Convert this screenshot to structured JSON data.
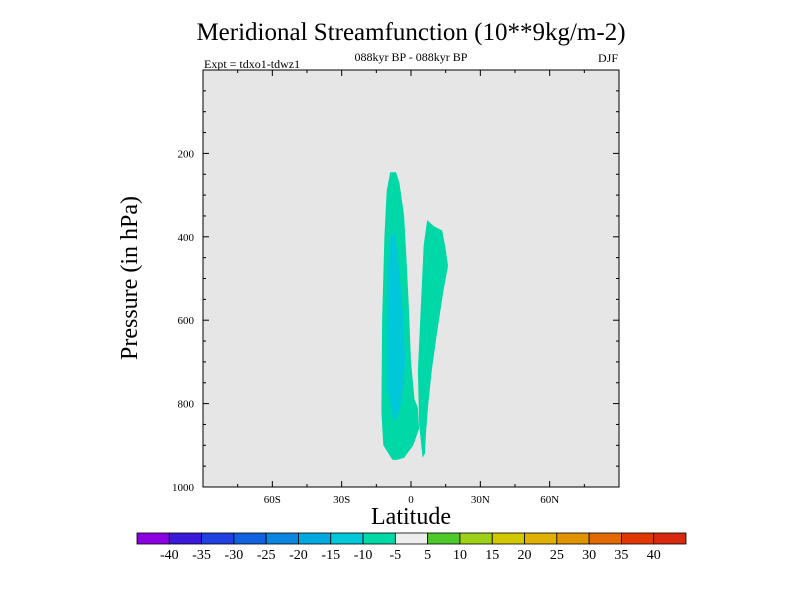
{
  "chart_data": {
    "type": "heatmap",
    "title": "Meridional Streamfunction (10**9kg/m-2)",
    "subtitle": "088kyr BP - 088kyr BP",
    "experiment": "Expt = tdxo1-tdwz1",
    "season": "DJF",
    "xlabel": "Latitude",
    "ylabel": "Pressure (in hPa)",
    "xlim": [
      -90,
      90
    ],
    "ylim": [
      1000,
      0
    ],
    "x_ticks": [
      {
        "value": -60,
        "label": "60S"
      },
      {
        "value": -30,
        "label": "30S"
      },
      {
        "value": 0,
        "label": "0"
      },
      {
        "value": 30,
        "label": "30N"
      },
      {
        "value": 60,
        "label": "60N"
      }
    ],
    "y_ticks": [
      {
        "value": 200,
        "label": "200"
      },
      {
        "value": 400,
        "label": "400"
      },
      {
        "value": 600,
        "label": "600"
      },
      {
        "value": 800,
        "label": "800"
      },
      {
        "value": 1000,
        "label": "1000"
      }
    ],
    "background_color": "#e6e6e6",
    "colorbar": {
      "levels": [
        "-40",
        "-35",
        "-30",
        "-25",
        "-20",
        "-15",
        "-10",
        "-5",
        "5",
        "10",
        "15",
        "20",
        "25",
        "30",
        "35",
        "40"
      ],
      "colors": [
        "#8a00e0",
        "#3a1ad8",
        "#2040e0",
        "#1060e0",
        "#0a86e0",
        "#00a8e0",
        "#00c8d8",
        "#00d8a8",
        "#eeeeee",
        "#4ec82a",
        "#9ed218",
        "#d2c800",
        "#e0b000",
        "#e09400",
        "#e06a00",
        "#e03800",
        "#d82a10"
      ]
    },
    "contours": [
      {
        "name": "main-negative",
        "bin": "-10 to -5",
        "color": "#00d8a8",
        "points": [
          [
            -8,
            935
          ],
          [
            -12,
            900
          ],
          [
            -12.8,
            820
          ],
          [
            -12.5,
            600
          ],
          [
            -11.5,
            400
          ],
          [
            -10.5,
            290
          ],
          [
            -9,
            245
          ],
          [
            -6.5,
            245
          ],
          [
            -5,
            270
          ],
          [
            -3,
            350
          ],
          [
            -2,
            450
          ],
          [
            -1,
            560
          ],
          [
            0,
            700
          ],
          [
            1.5,
            790
          ],
          [
            3,
            810
          ],
          [
            3.5,
            860
          ],
          [
            1,
            900
          ],
          [
            -3,
            930
          ],
          [
            -6,
            935
          ]
        ]
      },
      {
        "name": "core-negative",
        "bin": "-15 to -10",
        "color": "#00c8d8",
        "points": [
          [
            -7.5,
            840
          ],
          [
            -10.5,
            760
          ],
          [
            -10.5,
            620
          ],
          [
            -10,
            480
          ],
          [
            -9,
            400
          ],
          [
            -7,
            390
          ],
          [
            -5.5,
            460
          ],
          [
            -3.5,
            580
          ],
          [
            -2.5,
            700
          ],
          [
            -4,
            790
          ],
          [
            -6,
            835
          ]
        ]
      },
      {
        "name": "north-negative",
        "bin": "-10 to -5",
        "color": "#00d8a8",
        "points": [
          [
            5,
            930
          ],
          [
            3.5,
            850
          ],
          [
            3,
            720
          ],
          [
            4,
            600
          ],
          [
            5.5,
            420
          ],
          [
            7,
            360
          ],
          [
            10,
            375
          ],
          [
            13.5,
            385
          ],
          [
            15,
            430
          ],
          [
            16,
            470
          ],
          [
            14,
            530
          ],
          [
            11,
            640
          ],
          [
            9,
            720
          ],
          [
            7.5,
            800
          ],
          [
            6.5,
            870
          ],
          [
            6,
            920
          ]
        ]
      }
    ]
  }
}
